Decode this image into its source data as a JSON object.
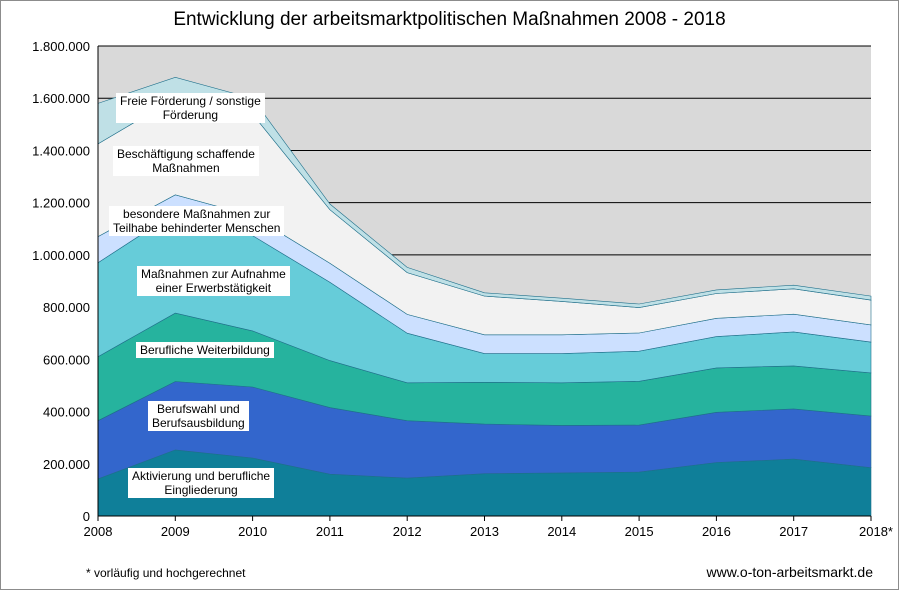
{
  "title": "Entwicklung der arbeitsmarktpolitischen Maßnahmen 2008 - 2018",
  "footnote": "* vorläufig und hochgerechnet",
  "source": "www.o-ton-arbeitsmarkt.de",
  "chart_data": {
    "type": "area",
    "stacked": true,
    "x": [
      "2008",
      "2009",
      "2010",
      "2011",
      "2012",
      "2013",
      "2014",
      "2015",
      "2016",
      "2017",
      "2018*"
    ],
    "yticks": [
      "0",
      "200.000",
      "400.000",
      "600.000",
      "800.000",
      "1.000.000",
      "1.200.000",
      "1.400.000",
      "1.600.000",
      "1.800.000"
    ],
    "ylim": [
      0,
      1800000
    ],
    "grid": true,
    "legend": "labels placed inside the areas",
    "series": [
      {
        "name": "Aktivierung und berufliche Eingliederung",
        "label": "Aktivierung und berufliche\nEingliederung",
        "color": "#0f7f99",
        "values": [
          142000,
          253000,
          222000,
          160000,
          145000,
          162000,
          165000,
          168000,
          205000,
          218000,
          185000
        ]
      },
      {
        "name": "Berufswahl und Berufsausbildung",
        "label": "Berufswahl und\nBerufsausbildung",
        "color": "#3366cc",
        "values": [
          223000,
          262000,
          272000,
          255000,
          220000,
          190000,
          182000,
          180000,
          192000,
          192000,
          198000
        ]
      },
      {
        "name": "Berufliche Weiterbildung",
        "label": "Berufliche Weiterbildung",
        "color": "#26b39e",
        "values": [
          245000,
          262000,
          215000,
          180000,
          145000,
          160000,
          163000,
          168000,
          170000,
          165000,
          165000
        ]
      },
      {
        "name": "Maßnahmen zur Aufnahme einer Erwerbstätigkeit",
        "label": "Maßnahmen zur Aufnahme\neiner Erwerbstätigkeit",
        "color": "#66ccd9",
        "values": [
          360000,
          385000,
          365000,
          300000,
          190000,
          110000,
          112000,
          115000,
          120000,
          130000,
          118000
        ]
      },
      {
        "name": "besondere Maßnahmen zur Teilhabe behinderter Menschen",
        "label": "besondere Maßnahmen zur\nTeilhabe behinderter Menschen",
        "color": "#cce0ff",
        "values": [
          100000,
          68000,
          75000,
          73000,
          72000,
          72000,
          72000,
          70000,
          70000,
          68000,
          66000
        ]
      },
      {
        "name": "Beschäftigung schaffende Maßnahmen",
        "label": "Beschäftigung schaffende\nMaßnahmen",
        "color": "#f2f2f2",
        "values": [
          355000,
          370000,
          390000,
          205000,
          160000,
          148000,
          128000,
          97000,
          95000,
          97000,
          95000
        ]
      },
      {
        "name": "Freie Förderung / sonstige Förderung",
        "label": "Freie Förderung / sonstige\nFörderung",
        "color": "#bfe0e6",
        "values": [
          155000,
          80000,
          60000,
          22000,
          20000,
          13000,
          12000,
          14000,
          14000,
          14000,
          15000
        ]
      }
    ]
  }
}
